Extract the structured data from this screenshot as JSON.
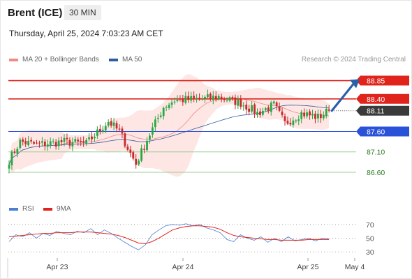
{
  "header": {
    "title": "Brent (ICE)",
    "timeframe": "30 MIN",
    "datetime": "Thursday, April 25, 2024 7:03:23 AM CET",
    "credit": "Research © 2024 Trading Central"
  },
  "legend": {
    "ma20_label": "MA 20 + Bollinger Bands",
    "ma20_color": "#f08a86",
    "ma50_label": "MA 50",
    "ma50_color": "#2e5c9e"
  },
  "rsi_legend": {
    "rsi_label": "RSI",
    "rsi_color": "#4a7fd4",
    "ma9_label": "9MA",
    "ma9_color": "#e0241b"
  },
  "colors": {
    "bull": "#27a844",
    "bear": "#c42b2b",
    "resistance": "#e0241b",
    "pivot": "#2952d9",
    "support": "#9ccf95",
    "band_fill": "#fde6e4",
    "arrow": "#2a5fac",
    "current": "#3a3a3a"
  },
  "chart_data": [
    {
      "type": "candlestick",
      "title": "Brent (ICE)",
      "timeframe": "30 MIN",
      "ylim": [
        86.0,
        89.15
      ],
      "x_ticks": [
        "Apr 23",
        "Apr 24",
        "Apr 25",
        "May 4"
      ],
      "current_price": 88.11,
      "levels": [
        {
          "value": 88.85,
          "label": "88.85",
          "kind": "target"
        },
        {
          "value": 88.4,
          "label": "88.40",
          "kind": "resistance"
        },
        {
          "value": 88.11,
          "label": "88.11",
          "kind": "current"
        },
        {
          "value": 87.6,
          "label": "87.60",
          "kind": "pivot"
        },
        {
          "value": 87.1,
          "label": "87.10",
          "kind": "support"
        },
        {
          "value": 86.6,
          "label": "86.60",
          "kind": "support"
        }
      ],
      "anchors": [
        {
          "bar": 0,
          "price": 86.9
        },
        {
          "bar": 4,
          "price": 87.35
        },
        {
          "bar": 10,
          "price": 87.28
        },
        {
          "bar": 20,
          "price": 87.35
        },
        {
          "bar": 28,
          "price": 87.3
        },
        {
          "bar": 36,
          "price": 87.85
        },
        {
          "bar": 40,
          "price": 87.6
        },
        {
          "bar": 46,
          "price": 86.8
        },
        {
          "bar": 50,
          "price": 87.4
        },
        {
          "bar": 56,
          "price": 88.2
        },
        {
          "bar": 60,
          "price": 88.37
        },
        {
          "bar": 70,
          "price": 88.4
        },
        {
          "bar": 76,
          "price": 88.45
        },
        {
          "bar": 84,
          "price": 88.3
        },
        {
          "bar": 90,
          "price": 88.05
        },
        {
          "bar": 96,
          "price": 88.25
        },
        {
          "bar": 100,
          "price": 87.8
        },
        {
          "bar": 106,
          "price": 88.05
        },
        {
          "bar": 112,
          "price": 87.95
        },
        {
          "bar": 116,
          "price": 88.11
        }
      ]
    },
    {
      "type": "line",
      "title": "RSI",
      "ylim": [
        25,
        80
      ],
      "y_ticks": [
        30,
        50,
        70
      ],
      "series": [
        {
          "name": "RSI",
          "values": [
            45,
            55,
            52,
            58,
            50,
            57,
            54,
            60,
            57,
            55,
            60,
            58,
            64,
            55,
            62,
            57,
            50,
            44,
            38,
            33,
            40,
            55,
            62,
            68,
            70,
            69,
            71,
            68,
            70,
            65,
            62,
            58,
            48,
            45,
            55,
            50,
            47,
            52,
            44,
            50,
            45,
            52,
            46,
            48,
            50,
            46,
            50,
            49
          ]
        },
        {
          "name": "9MA",
          "values": [
            52,
            53,
            54,
            55,
            56,
            57,
            57,
            58,
            58,
            58,
            59,
            59,
            59,
            58,
            57,
            56,
            54,
            51,
            47,
            43,
            42,
            45,
            50,
            56,
            62,
            65,
            67,
            68,
            68,
            67,
            66,
            63,
            58,
            54,
            52,
            51,
            50,
            49,
            48,
            48,
            47,
            47,
            47,
            47,
            48,
            48,
            48,
            48
          ]
        }
      ]
    }
  ]
}
